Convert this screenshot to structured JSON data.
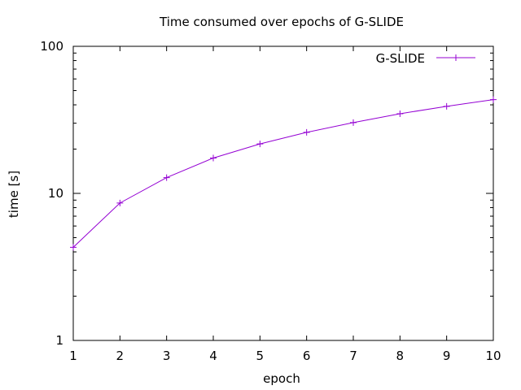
{
  "chart_data": {
    "type": "line",
    "title": "Time consumed over epochs of G-SLIDE",
    "xlabel": "epoch",
    "ylabel": "time [s]",
    "xlim": [
      1,
      10
    ],
    "ylim": [
      1,
      100
    ],
    "yscale": "log",
    "grid": false,
    "legend_position": "top-right",
    "x_ticks": [
      1,
      2,
      3,
      4,
      5,
      6,
      7,
      8,
      9,
      10
    ],
    "y_ticks": [
      1,
      10,
      100
    ],
    "series": [
      {
        "name": "G-SLIDE",
        "color": "#9400d3",
        "marker": "plus",
        "x": [
          1,
          2,
          3,
          4,
          5,
          6,
          7,
          8,
          9,
          10
        ],
        "y": [
          4.3,
          8.6,
          12.8,
          17.4,
          21.7,
          26.0,
          30.3,
          34.8,
          39.1,
          43.4
        ]
      }
    ]
  }
}
